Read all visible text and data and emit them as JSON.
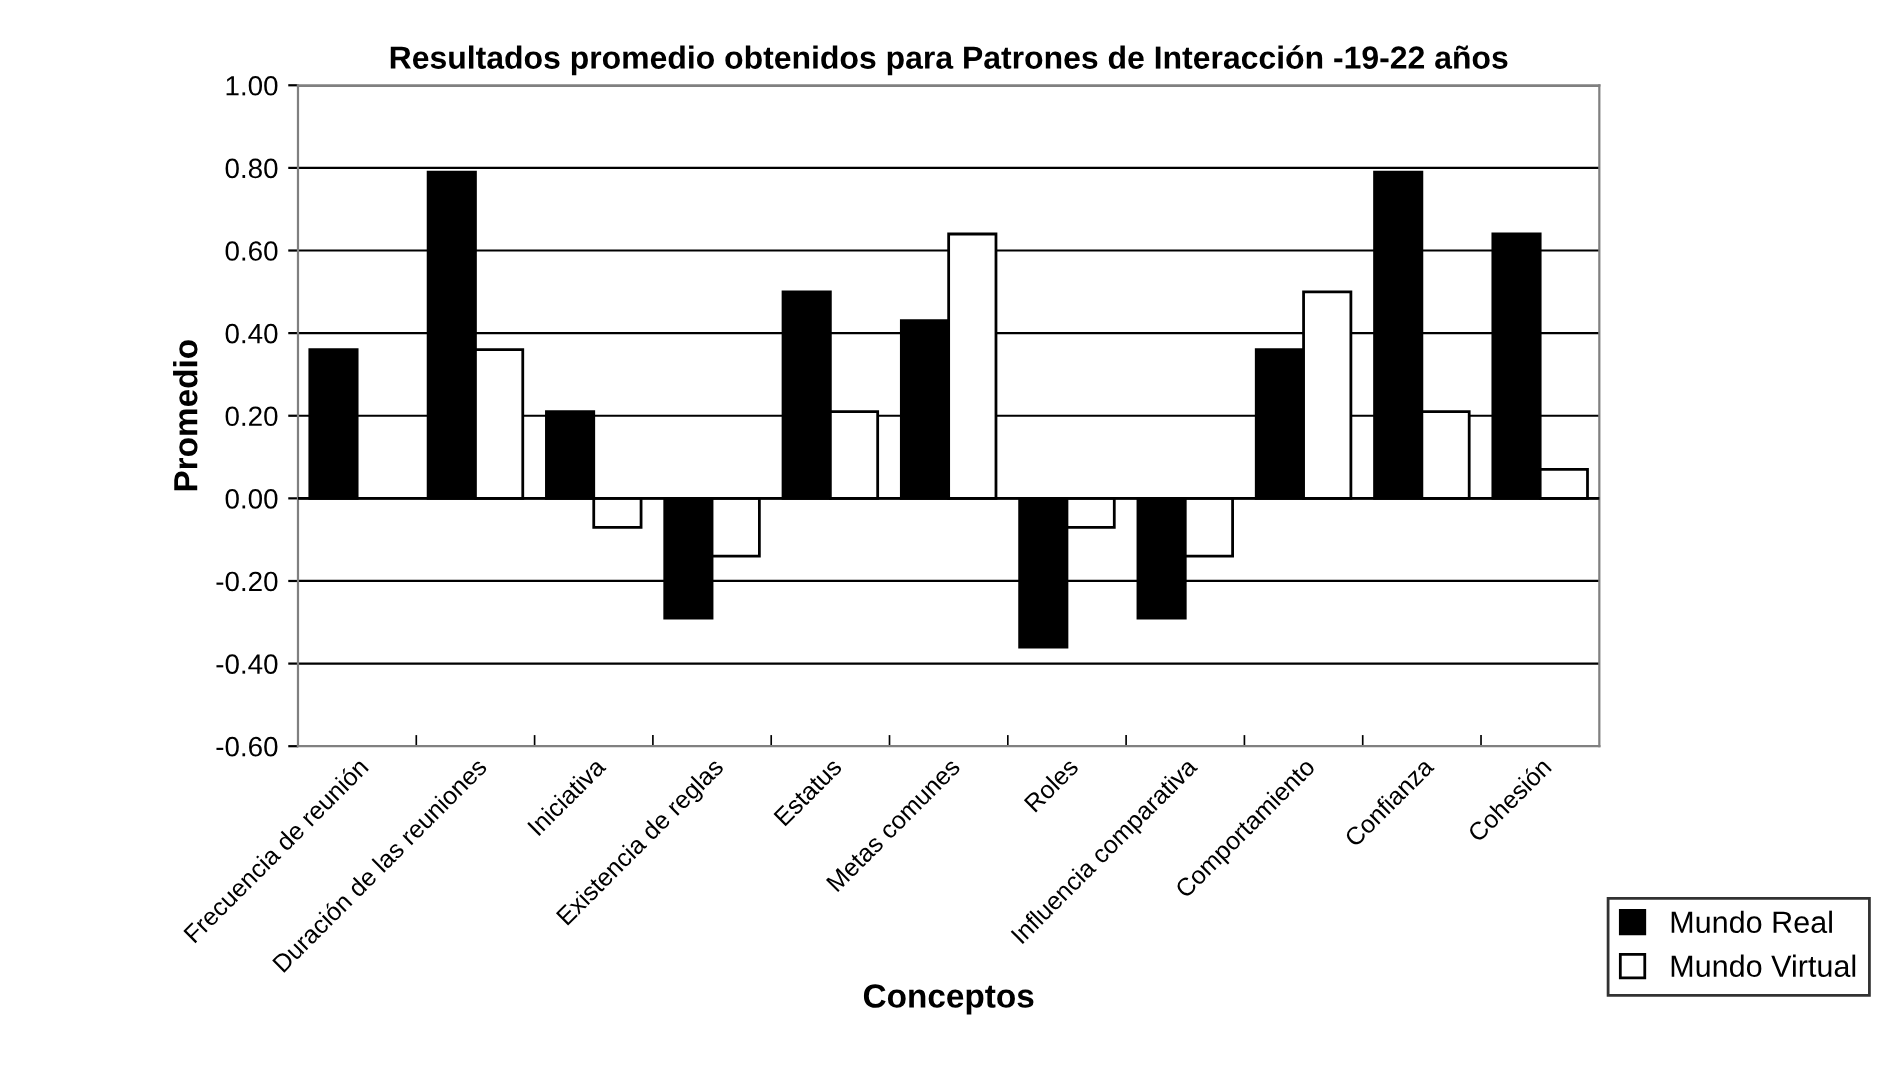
{
  "chart_data": {
    "type": "bar",
    "title": "Resultados promedio obtenidos para Patrones de Interacción -19-22 años",
    "xlabel": "Conceptos",
    "ylabel": "Promedio",
    "categories": [
      "Frecuencia de reunión",
      "Duración de las reuniones",
      "Iniciativa",
      "Existencia de reglas",
      "Estatus",
      "Metas comunes",
      "Roles",
      "Influencia comparativa",
      "Comportamiento",
      "Confianza",
      "Cohesión"
    ],
    "series": [
      {
        "name": "Mundo Real",
        "color": "#000000",
        "values": [
          0.36,
          0.79,
          0.21,
          -0.29,
          0.5,
          0.43,
          -0.36,
          -0.29,
          0.36,
          0.79,
          0.64
        ]
      },
      {
        "name": "Mundo Virtual",
        "color": "#ffffff",
        "values": [
          null,
          0.36,
          -0.07,
          -0.14,
          0.21,
          0.64,
          -0.07,
          -0.14,
          0.5,
          0.21,
          0.07
        ]
      }
    ],
    "ylim": [
      -0.6,
      1.0
    ],
    "yticks": [
      {
        "value": -0.6,
        "label": "-0.60"
      },
      {
        "value": -0.4,
        "label": "-0.40"
      },
      {
        "value": -0.2,
        "label": "-0.20"
      },
      {
        "value": 0,
        "label": "0.00"
      },
      {
        "value": 0.2,
        "label": "0.20"
      },
      {
        "value": 0.4,
        "label": "0.40"
      },
      {
        "value": 0.6,
        "label": "0.60"
      },
      {
        "value": 0.8,
        "label": "0.80"
      },
      {
        "value": 1.0,
        "label": "1.00"
      }
    ],
    "grid": "y",
    "legend": "bottom right"
  }
}
